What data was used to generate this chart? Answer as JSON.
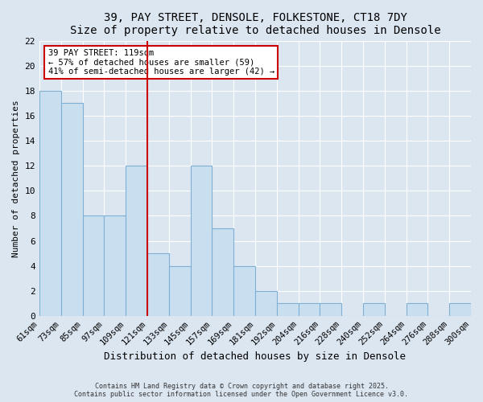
{
  "title": "39, PAY STREET, DENSOLE, FOLKESTONE, CT18 7DY",
  "subtitle": "Size of property relative to detached houses in Densole",
  "xlabel": "Distribution of detached houses by size in Densole",
  "ylabel": "Number of detached properties",
  "bin_labels": [
    "61sqm",
    "73sqm",
    "85sqm",
    "97sqm",
    "109sqm",
    "121sqm",
    "133sqm",
    "145sqm",
    "157sqm",
    "169sqm",
    "181sqm",
    "192sqm",
    "204sqm",
    "216sqm",
    "228sqm",
    "240sqm",
    "252sqm",
    "264sqm",
    "276sqm",
    "288sqm",
    "300sqm"
  ],
  "bar_heights": [
    18,
    17,
    8,
    8,
    12,
    5,
    4,
    12,
    7,
    4,
    2,
    1,
    1,
    1,
    0,
    1,
    0,
    1,
    0,
    1
  ],
  "bar_color": "#c9dff0",
  "bar_edge_color": "#7db0d4",
  "vline_label_index": 5,
  "vline_color": "#cc0000",
  "annotation_text": "39 PAY STREET: 119sqm\n← 57% of detached houses are smaller (59)\n41% of semi-detached houses are larger (42) →",
  "annotation_box_facecolor": "#ffffff",
  "annotation_box_edgecolor": "#cc0000",
  "ylim": [
    0,
    22
  ],
  "yticks": [
    0,
    2,
    4,
    6,
    8,
    10,
    12,
    14,
    16,
    18,
    20,
    22
  ],
  "footer1": "Contains HM Land Registry data © Crown copyright and database right 2025.",
  "footer2": "Contains public sector information licensed under the Open Government Licence v3.0.",
  "bg_color": "#dce6f1",
  "grid_color": "#ffffff"
}
